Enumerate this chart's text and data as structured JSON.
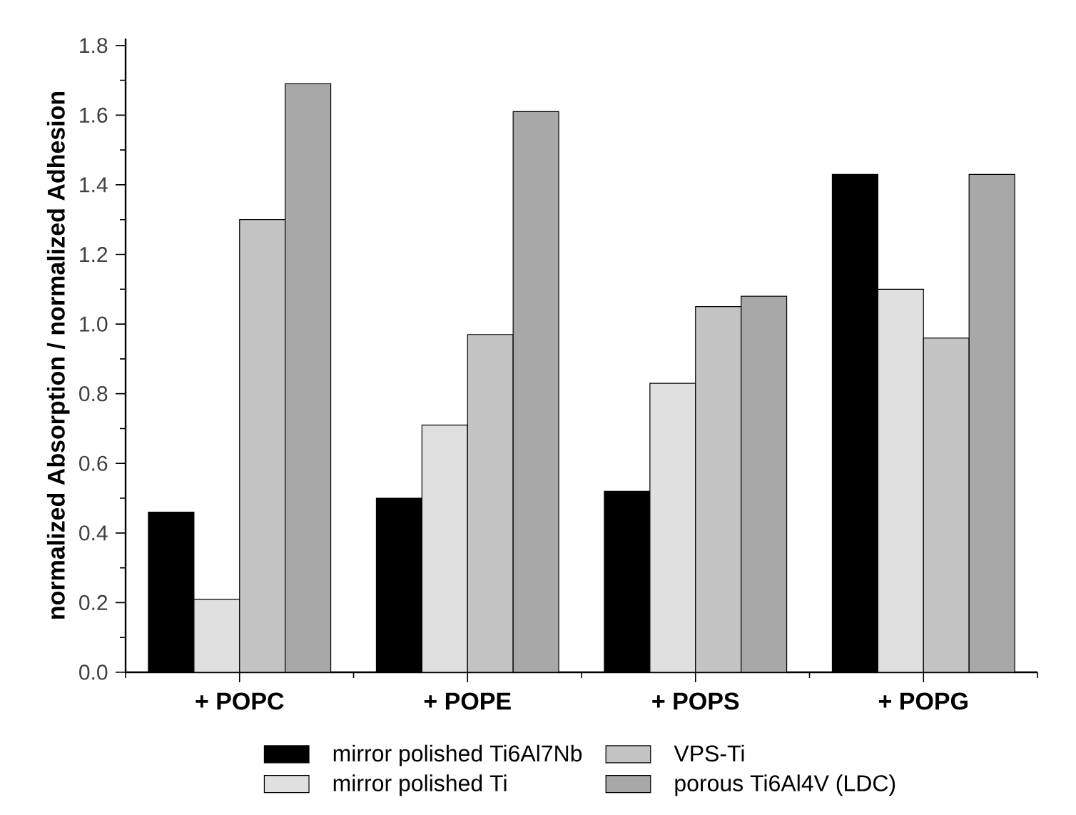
{
  "chart_data": {
    "type": "bar",
    "ylabel": "normalized Absorption / normalized Adhesion",
    "categories": [
      "+ POPC",
      "+ POPE",
      "+ POPS",
      "+ POPG"
    ],
    "series": [
      {
        "name": "mirror polished Ti6Al7Nb",
        "color": "#000000",
        "values": [
          0.46,
          0.5,
          0.52,
          1.43
        ]
      },
      {
        "name": "mirror polished Ti",
        "color": "#e0e0e0",
        "values": [
          0.21,
          0.71,
          0.83,
          1.1
        ]
      },
      {
        "name": "VPS-Ti",
        "color": "#c4c4c4",
        "values": [
          1.3,
          0.97,
          1.05,
          0.96
        ]
      },
      {
        "name": "porous Ti6Al4V (LDC)",
        "color": "#a8a8a8",
        "values": [
          1.69,
          1.61,
          1.08,
          1.43
        ]
      }
    ],
    "ylim": [
      0,
      1.82
    ],
    "yticks": [
      {
        "value": 0,
        "label": "0.0"
      },
      {
        "value": 0.2,
        "label": "0.2"
      },
      {
        "value": 0.4,
        "label": "0.4"
      },
      {
        "value": 0.6,
        "label": "0.6"
      },
      {
        "value": 0.8,
        "label": "0.8"
      },
      {
        "value": 1.0,
        "label": "1.0"
      },
      {
        "value": 1.2,
        "label": "1.2"
      },
      {
        "value": 1.4,
        "label": "1.4"
      },
      {
        "value": 1.6,
        "label": "1.6"
      },
      {
        "value": 1.8,
        "label": "1.8"
      }
    ],
    "legend": "bottom",
    "grid": false
  }
}
